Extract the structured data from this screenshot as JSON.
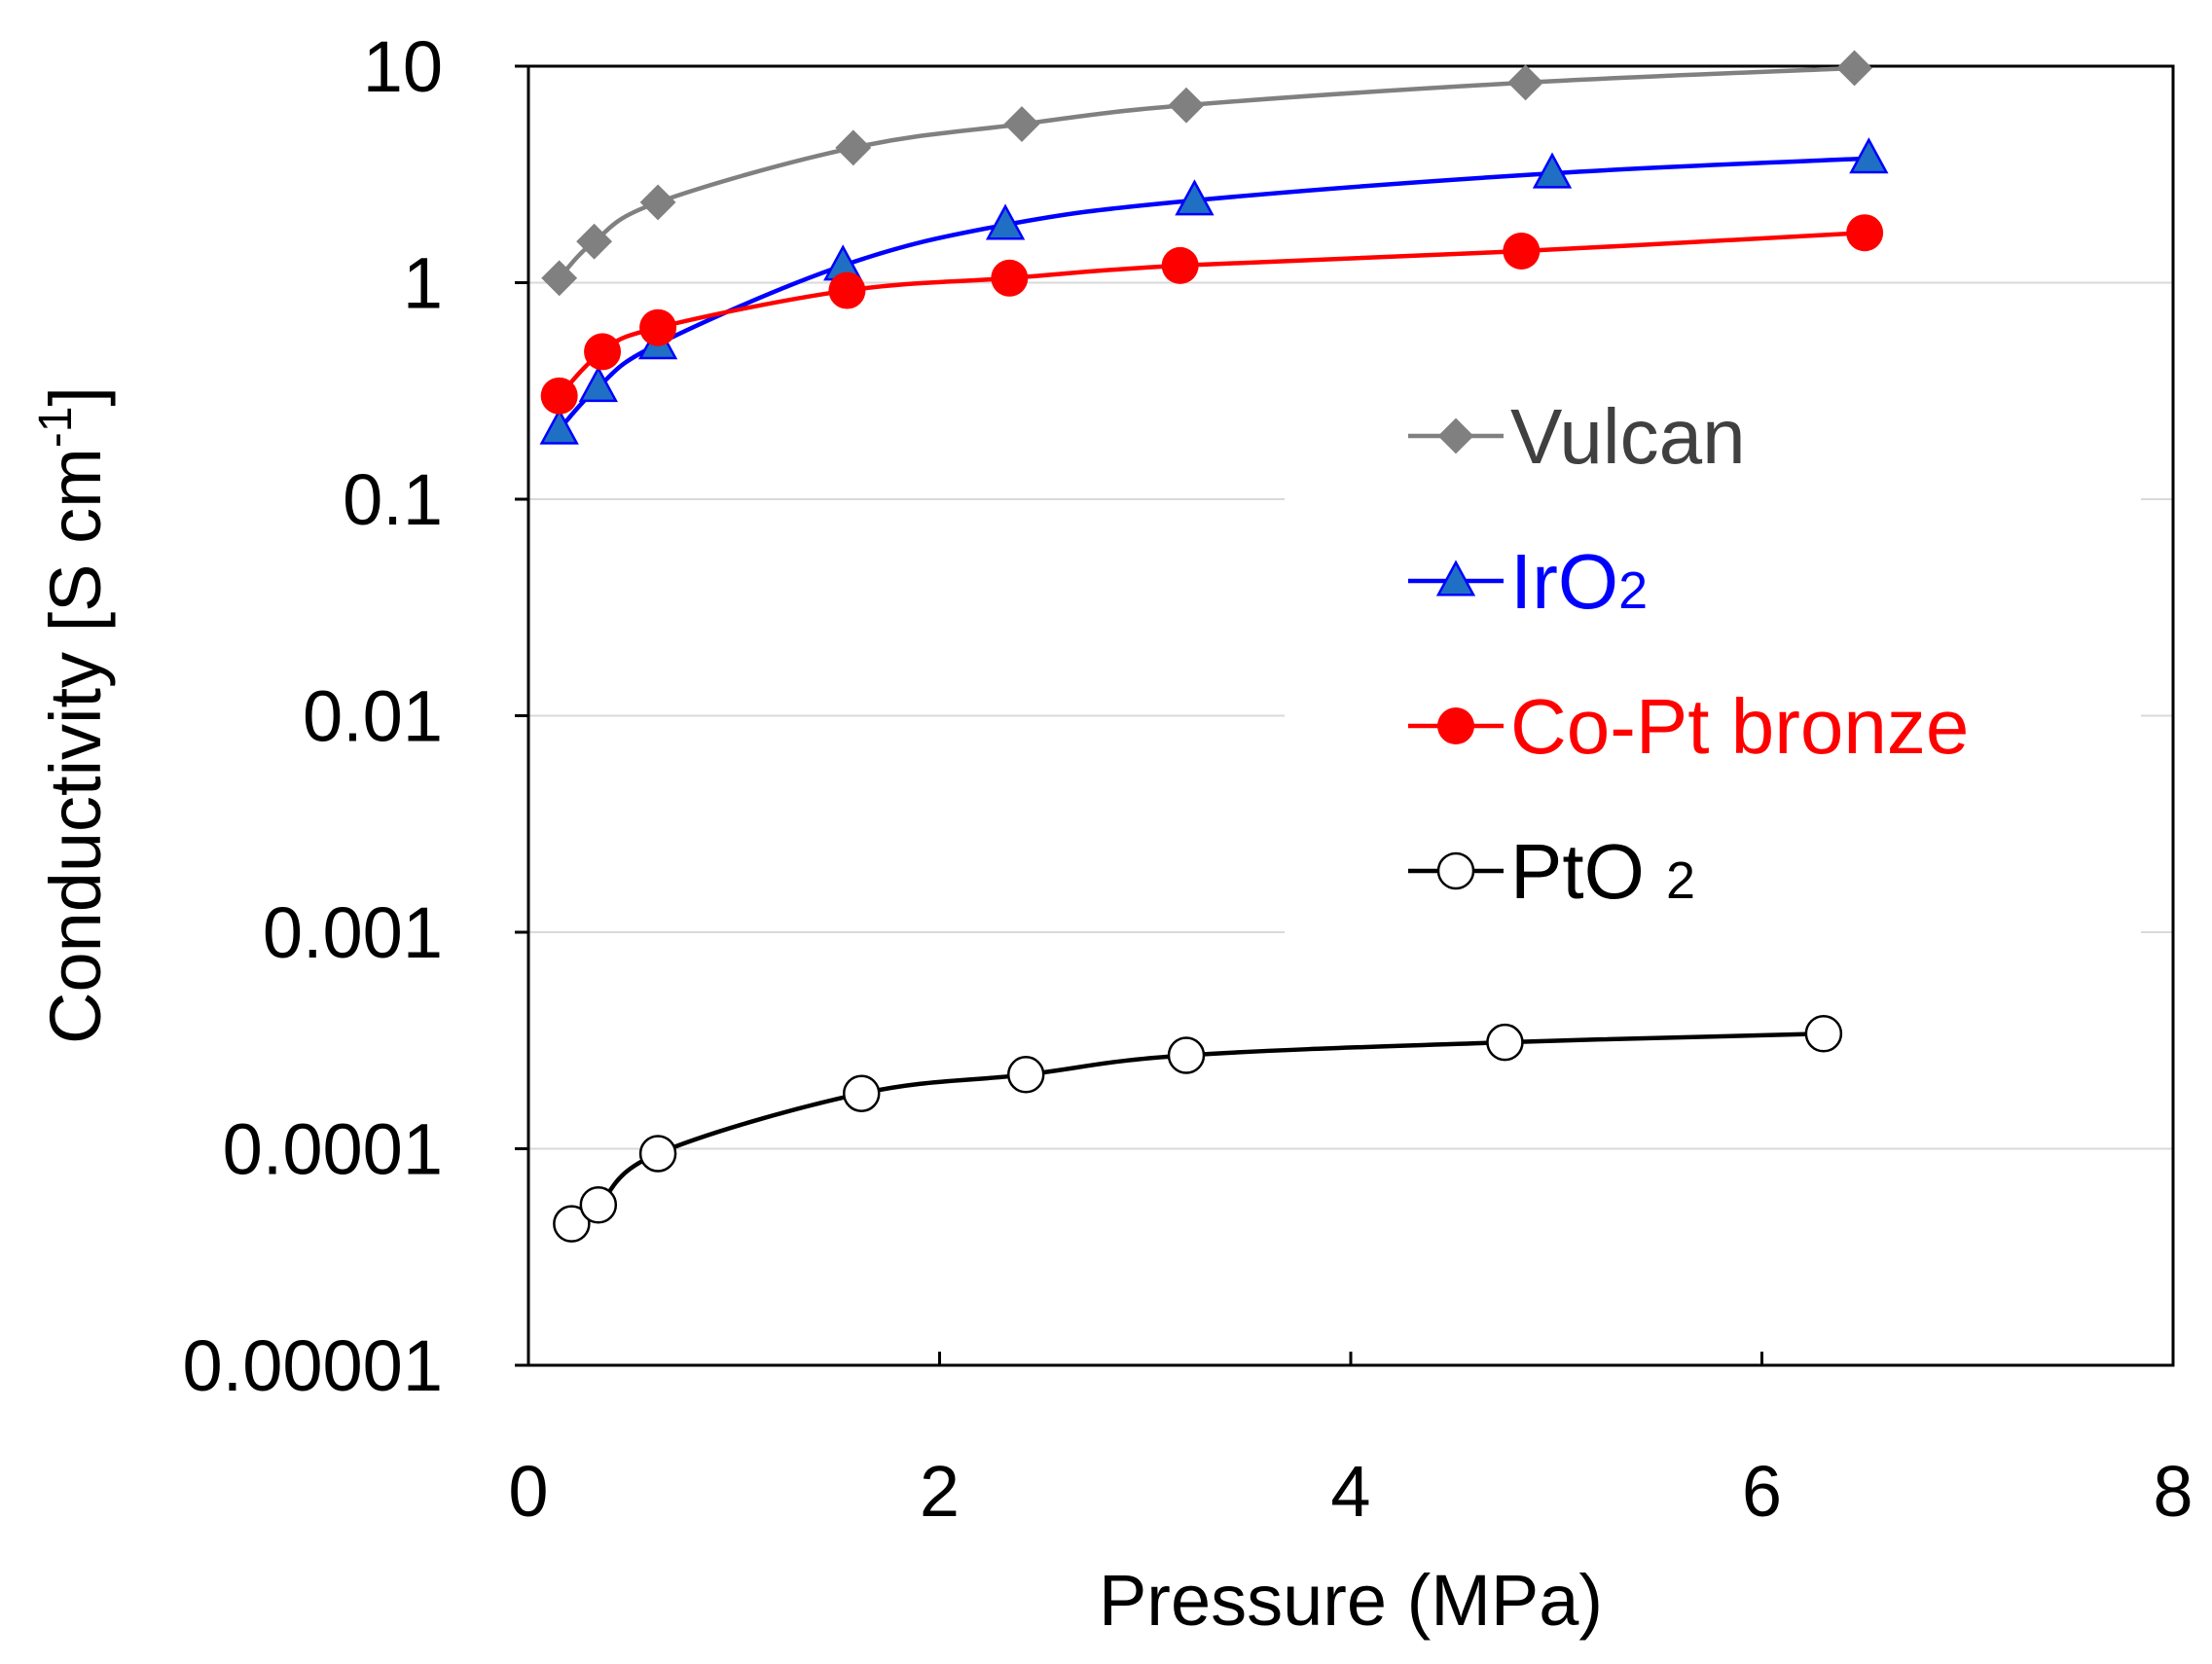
{
  "chart_data": {
    "type": "line",
    "title": "",
    "xlabel": "Pressure (MPa)",
    "ylabel": {
      "main": "Conductivity [S cm",
      "superscript": "-1",
      "close": "]"
    },
    "xlim": [
      0,
      8
    ],
    "ylim": [
      1e-05,
      10
    ],
    "yscale": "log",
    "x_ticks": [
      "0",
      "2",
      "4",
      "6",
      "8"
    ],
    "x_tick_values": [
      0,
      2,
      4,
      6,
      8
    ],
    "y_ticks": [
      "10",
      "1",
      "0.1",
      "0.01",
      "0.001",
      "0.0001",
      "0.00001"
    ],
    "y_tick_values": [
      10,
      1,
      0.1,
      0.01,
      0.001,
      0.0001,
      1e-05
    ],
    "grid": "horizontal",
    "legend_position": "right-middle",
    "series": [
      {
        "name": "Vulcan",
        "color": "#808080",
        "marker": "diamond",
        "x": [
          0.15,
          0.32,
          0.63,
          1.58,
          2.4,
          3.2,
          4.85,
          6.45
        ],
        "y": [
          1.05,
          1.55,
          2.35,
          4.2,
          5.4,
          6.6,
          8.4,
          9.8
        ]
      },
      {
        "name": "IrO",
        "name_sub": "2",
        "color": "#0000FF",
        "marker_fill": "#1F6FC5",
        "marker": "triangle",
        "x": [
          0.15,
          0.34,
          0.63,
          1.53,
          2.32,
          3.24,
          4.98,
          6.52
        ],
        "y": [
          0.21,
          0.33,
          0.52,
          1.2,
          1.85,
          2.4,
          3.2,
          3.75
        ]
      },
      {
        "name": "Co-Pt bronze",
        "color": "#FF0000",
        "marker": "circle",
        "x": [
          0.15,
          0.36,
          0.63,
          1.55,
          2.34,
          3.17,
          4.83,
          6.5
        ],
        "y": [
          0.3,
          0.48,
          0.62,
          0.92,
          1.05,
          1.2,
          1.4,
          1.7
        ]
      },
      {
        "name": "PtO ",
        "name_sub": "2",
        "color": "#000000",
        "marker": "open-circle",
        "x": [
          0.21,
          0.34,
          0.63,
          1.62,
          2.42,
          3.2,
          4.75,
          6.3
        ],
        "y": [
          4.5e-05,
          5.5e-05,
          9.5e-05,
          0.00018,
          0.00022,
          0.00027,
          0.00031,
          0.00034
        ]
      }
    ]
  }
}
